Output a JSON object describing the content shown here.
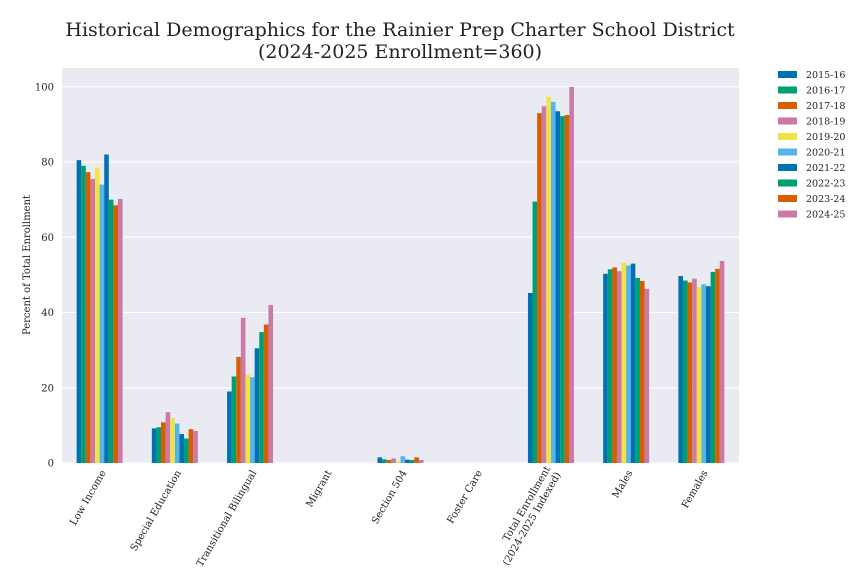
{
  "chart_data": {
    "type": "bar",
    "title": "Historical Demographics for the Rainier Prep Charter School District",
    "subtitle": "(2024-2025 Enrollment=360)",
    "xlabel": "",
    "ylabel": "Percent of Total Enrollment",
    "ylim": [
      0,
      105
    ],
    "yticks": [
      0,
      20,
      40,
      60,
      80,
      100
    ],
    "grid": true,
    "legend_position": "outside-right",
    "categories": [
      "Low Income",
      "Special Education",
      "Transitional Bilingual",
      "Migrant",
      "Section 504",
      "Foster Care",
      "Total Enrollment\n(2024-2025 Indexed)",
      "Males",
      "Females"
    ],
    "series": [
      {
        "name": "2015-16",
        "color": "#0072B2",
        "values": [
          80.5,
          9.2,
          19.0,
          0,
          1.5,
          0,
          45.2,
          50.3,
          49.7
        ]
      },
      {
        "name": "2016-17",
        "color": "#009E73",
        "values": [
          79.0,
          9.5,
          23.0,
          0,
          1.0,
          0,
          69.5,
          51.5,
          48.5
        ]
      },
      {
        "name": "2017-18",
        "color": "#D55E00",
        "values": [
          77.3,
          10.8,
          28.2,
          0,
          0.8,
          0,
          93.0,
          52.0,
          48.0
        ]
      },
      {
        "name": "2018-19",
        "color": "#CC79A7",
        "values": [
          75.5,
          13.5,
          38.6,
          0,
          1.2,
          0,
          94.8,
          51.0,
          49.0
        ]
      },
      {
        "name": "2019-20",
        "color": "#F0E442",
        "values": [
          78.5,
          12.0,
          23.4,
          0,
          0.5,
          0,
          97.3,
          53.2,
          46.8
        ]
      },
      {
        "name": "2020-21",
        "color": "#56B4E9",
        "values": [
          74.0,
          10.5,
          22.8,
          0,
          1.8,
          0,
          96.0,
          52.5,
          47.5
        ]
      },
      {
        "name": "2021-22",
        "color": "#0072B2",
        "values": [
          82.0,
          7.7,
          30.5,
          0,
          0.9,
          0,
          93.5,
          53.0,
          47.0
        ]
      },
      {
        "name": "2022-23",
        "color": "#009E73",
        "values": [
          70.0,
          6.5,
          34.8,
          0,
          0.8,
          0,
          92.2,
          49.2,
          50.8
        ]
      },
      {
        "name": "2023-24",
        "color": "#D55E00",
        "values": [
          68.5,
          9.0,
          36.8,
          0,
          1.5,
          0,
          92.5,
          48.4,
          51.6
        ]
      },
      {
        "name": "2024-25",
        "color": "#CC79A7",
        "values": [
          70.2,
          8.5,
          42.0,
          0,
          0.8,
          0,
          100.0,
          46.3,
          53.7
        ]
      }
    ]
  }
}
